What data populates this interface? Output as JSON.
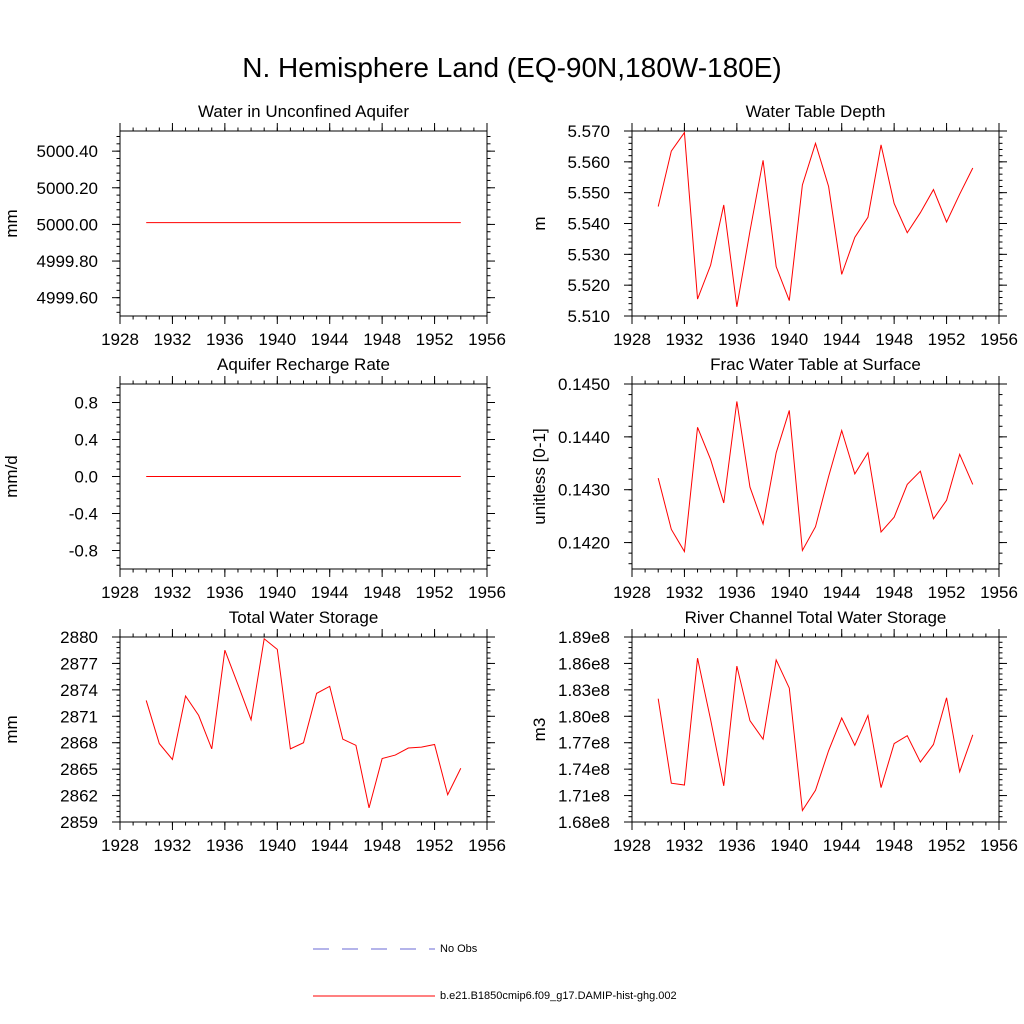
{
  "figure": {
    "title": "N. Hemisphere Land (EQ-90N,180W-180E)"
  },
  "legend": {
    "items": [
      {
        "label": "No Obs",
        "color": "#6a6ad6",
        "style": "dashed"
      },
      {
        "label": "b.e21.B1850cmip6.f09_g17.DAMIP-hist-ghg.002",
        "color": "#ff0000",
        "style": "solid"
      }
    ]
  },
  "chart_data": [
    {
      "type": "line",
      "title": "Water in Unconfined Aquifer",
      "ylabel": "mm",
      "xlim": [
        1928,
        1956
      ],
      "ylim": [
        4999.5,
        5000.51
      ],
      "xticks": [
        1928,
        1932,
        1936,
        1940,
        1944,
        1948,
        1952,
        1956
      ],
      "yticks": [
        4999.6,
        4999.8,
        5000.0,
        5000.2,
        5000.4
      ],
      "ytick_labels": [
        "4999.60",
        "4999.80",
        "5000.00",
        "5000.20",
        "5000.40"
      ],
      "series": [
        {
          "color": "#ff0000",
          "x": [
            1930,
            1931,
            1932,
            1933,
            1934,
            1935,
            1936,
            1937,
            1938,
            1939,
            1940,
            1941,
            1942,
            1943,
            1944,
            1945,
            1946,
            1947,
            1948,
            1949,
            1950,
            1951,
            1952,
            1953,
            1954
          ],
          "y": [
            5000.01,
            5000.01,
            5000.01,
            5000.01,
            5000.01,
            5000.01,
            5000.01,
            5000.01,
            5000.01,
            5000.01,
            5000.01,
            5000.01,
            5000.01,
            5000.01,
            5000.01,
            5000.01,
            5000.01,
            5000.01,
            5000.01,
            5000.01,
            5000.01,
            5000.01,
            5000.01,
            5000.01,
            5000.01
          ]
        }
      ]
    },
    {
      "type": "line",
      "title": "Water Table Depth",
      "ylabel": "m",
      "xlim": [
        1928,
        1956
      ],
      "ylim": [
        5.51,
        5.57
      ],
      "xticks": [
        1928,
        1932,
        1936,
        1940,
        1944,
        1948,
        1952,
        1956
      ],
      "yticks": [
        5.51,
        5.52,
        5.53,
        5.54,
        5.55,
        5.56,
        5.57
      ],
      "ytick_labels": [
        "5.510",
        "5.520",
        "5.530",
        "5.540",
        "5.550",
        "5.560",
        "5.570"
      ],
      "series": [
        {
          "color": "#ff0000",
          "x": [
            1930,
            1931,
            1932,
            1933,
            1934,
            1935,
            1936,
            1937,
            1938,
            1939,
            1940,
            1941,
            1942,
            1943,
            1944,
            1945,
            1946,
            1947,
            1948,
            1949,
            1950,
            1951,
            1952,
            1953,
            1954
          ],
          "y": [
            5.5455,
            5.5635,
            5.5695,
            5.5155,
            5.5265,
            5.546,
            5.513,
            5.5375,
            5.5605,
            5.526,
            5.515,
            5.5525,
            5.566,
            5.552,
            5.5235,
            5.5355,
            5.542,
            5.5655,
            5.5465,
            5.537,
            5.5435,
            5.551,
            5.5405,
            5.5495,
            5.558
          ]
        }
      ]
    },
    {
      "type": "line",
      "title": "Aquifer Recharge Rate",
      "ylabel": "mm/d",
      "xlim": [
        1928,
        1956
      ],
      "ylim": [
        -1.0,
        1.0
      ],
      "xticks": [
        1928,
        1932,
        1936,
        1940,
        1944,
        1948,
        1952,
        1956
      ],
      "yticks": [
        -0.8,
        -0.4,
        0.0,
        0.4,
        0.8
      ],
      "ytick_labels": [
        "-0.8",
        "-0.4",
        "0.0",
        "0.4",
        "0.8"
      ],
      "series": [
        {
          "color": "#ff0000",
          "x": [
            1930,
            1931,
            1932,
            1933,
            1934,
            1935,
            1936,
            1937,
            1938,
            1939,
            1940,
            1941,
            1942,
            1943,
            1944,
            1945,
            1946,
            1947,
            1948,
            1949,
            1950,
            1951,
            1952,
            1953,
            1954
          ],
          "y": [
            0,
            0,
            0,
            0,
            0,
            0,
            0,
            0,
            0,
            0,
            0,
            0,
            0,
            0,
            0,
            0,
            0,
            0,
            0,
            0,
            0,
            0,
            0,
            0,
            0
          ]
        }
      ]
    },
    {
      "type": "line",
      "title": "Frac Water Table at Surface",
      "ylabel": "unitless [0-1]",
      "xlim": [
        1928,
        1956
      ],
      "ylim": [
        0.1415,
        0.145
      ],
      "xticks": [
        1928,
        1932,
        1936,
        1940,
        1944,
        1948,
        1952,
        1956
      ],
      "yticks": [
        0.142,
        0.143,
        0.144,
        0.145
      ],
      "ytick_labels": [
        "0.1420",
        "0.1430",
        "0.1440",
        "0.1450"
      ],
      "series": [
        {
          "color": "#ff0000",
          "x": [
            1930,
            1931,
            1932,
            1933,
            1934,
            1935,
            1936,
            1937,
            1938,
            1939,
            1940,
            1941,
            1942,
            1943,
            1944,
            1945,
            1946,
            1947,
            1948,
            1949,
            1950,
            1951,
            1952,
            1953,
            1954
          ],
          "y": [
            0.14322,
            0.14225,
            0.14183,
            0.14418,
            0.14357,
            0.14275,
            0.14467,
            0.14305,
            0.14235,
            0.1437,
            0.1445,
            0.14185,
            0.1423,
            0.14325,
            0.14412,
            0.1433,
            0.1437,
            0.1422,
            0.14248,
            0.1431,
            0.14335,
            0.14245,
            0.1428,
            0.14367,
            0.1431
          ]
        }
      ]
    },
    {
      "type": "line",
      "title": "Total Water Storage",
      "ylabel": "mm",
      "xlim": [
        1928,
        1956
      ],
      "ylim": [
        2859,
        2880
      ],
      "xticks": [
        1928,
        1932,
        1936,
        1940,
        1944,
        1948,
        1952,
        1956
      ],
      "yticks": [
        2859,
        2862,
        2865,
        2868,
        2871,
        2874,
        2877,
        2880
      ],
      "ytick_labels": [
        "2859",
        "2862",
        "2865",
        "2868",
        "2871",
        "2874",
        "2877",
        "2880"
      ],
      "series": [
        {
          "color": "#ff0000",
          "x": [
            1930,
            1931,
            1932,
            1933,
            1934,
            1935,
            1936,
            1937,
            1938,
            1939,
            1940,
            1941,
            1942,
            1943,
            1944,
            1945,
            1946,
            1947,
            1948,
            1949,
            1950,
            1951,
            1952,
            1953,
            1954
          ],
          "y": [
            2872.8,
            2867.9,
            2866.1,
            2873.3,
            2871.1,
            2867.3,
            2878.5,
            2874.6,
            2870.6,
            2879.8,
            2878.6,
            2867.3,
            2868.0,
            2873.6,
            2874.4,
            2868.4,
            2867.7,
            2860.6,
            2866.2,
            2866.6,
            2867.4,
            2867.5,
            2867.8,
            2862.1,
            2865.1
          ]
        }
      ]
    },
    {
      "type": "line",
      "title": "River Channel Total Water Storage",
      "ylabel": "m3",
      "xlim": [
        1928,
        1956
      ],
      "ylim": [
        168000000,
        189000000
      ],
      "xticks": [
        1928,
        1932,
        1936,
        1940,
        1944,
        1948,
        1952,
        1956
      ],
      "yticks": [
        168000000,
        171000000,
        174000000,
        177000000,
        180000000,
        183000000,
        186000000,
        189000000
      ],
      "ytick_labels": [
        "1.68e8",
        "1.71e8",
        "1.74e8",
        "1.77e8",
        "1.80e8",
        "1.83e8",
        "1.86e8",
        "1.89e8"
      ],
      "series": [
        {
          "color": "#ff0000",
          "x": [
            1930,
            1931,
            1932,
            1933,
            1934,
            1935,
            1936,
            1937,
            1938,
            1939,
            1940,
            1941,
            1942,
            1943,
            1944,
            1945,
            1946,
            1947,
            1948,
            1949,
            1950,
            1951,
            1952,
            1953,
            1954
          ],
          "y": [
            182000000,
            172400000,
            172200000,
            186600000,
            179600000,
            172100000,
            185700000,
            179500000,
            177400000,
            186400000,
            183200000,
            169300000,
            171600000,
            176100000,
            179800000,
            176700000,
            180100000,
            171900000,
            176900000,
            177800000,
            174800000,
            176800000,
            182100000,
            173700000,
            177900000
          ]
        }
      ]
    }
  ]
}
